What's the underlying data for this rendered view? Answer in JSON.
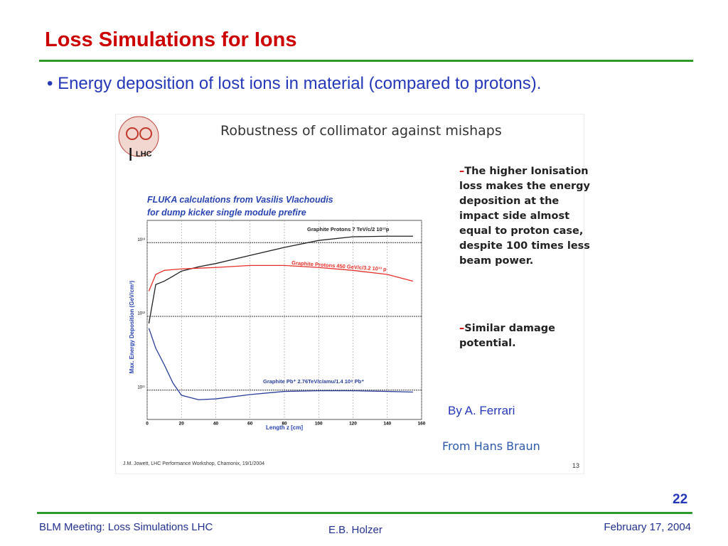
{
  "slide": {
    "title": "Loss Simulations for Ions",
    "bullet": "Energy deposition of lost ions in material (compared to protons).",
    "image_title": "Robustness of collimator against mishaps",
    "logo": "LHC",
    "notes": [
      "The higher Ionisation loss makes the energy deposition at the impact side almost equal to proton case, despite 100 times less beam power.",
      "Similar damage potential."
    ],
    "credit": "By A. Ferrari",
    "source": "From Hans Braun",
    "reference": "J.M. Jowett, LHC Performance Workshop, Chamonix, 19/1/2004",
    "image_page": "13",
    "page_number": "22",
    "footer": {
      "left": "BLM Meeting: Loss Simulations LHC",
      "center": "E.B. Holzer",
      "right": "February 17, 2004"
    }
  },
  "chart_data": {
    "type": "line",
    "title": [
      "FLUKA calculations from Vasilis Vlachoudis",
      "for dump kicker single module prefire"
    ],
    "x_label": "Length z [cm]",
    "y_label": "Max. Energy Deposition (GeV/cm³)",
    "log_y": true,
    "grid": true,
    "x": [
      1,
      5,
      10,
      15,
      20,
      30,
      40,
      60,
      80,
      100,
      120,
      140,
      155
    ],
    "series": [
      {
        "name": "Graphite Protons 7 TeV/c/2 10¹²p",
        "color": "#222222",
        "values": [
          800000000000.0,
          2700000000000.0,
          3000000000000.0,
          3500000000000.0,
          4100000000000.0,
          4700000000000.0,
          5200000000000.0,
          6700000000000.0,
          8600000000000.0,
          10700000000000.0,
          12000000000000.0,
          12200000000000.0,
          12200000000000.0
        ]
      },
      {
        "name": "Graphite Protons 450 GeV/c/3.2 10¹³ p",
        "color": "#e8302a",
        "values": [
          2200000000000.0,
          3700000000000.0,
          4200000000000.0,
          4300000000000.0,
          4400000000000.0,
          4500000000000.0,
          4600000000000.0,
          4900000000000.0,
          4900000000000.0,
          4600000000000.0,
          4200000000000.0,
          3700000000000.0,
          3000000000000.0
        ]
      },
      {
        "name": "Graphite Pb⁺ 2.76TeV/c/amu/1.4 10⁸ Pb⁺",
        "color": "#2a3f9a",
        "values": [
          690000000000.0,
          370000000000.0,
          220000000000.0,
          125000000000.0,
          85000000000.0,
          74000000000.0,
          76000000000.0,
          87000000000.0,
          96000000000.0,
          98000000000.0,
          98000000000.0,
          96000000000.0,
          94000000000.0
        ]
      }
    ],
    "xlim": [
      0,
      160
    ],
    "xticks": [
      0,
      20,
      40,
      60,
      80,
      100,
      120,
      140,
      160
    ],
    "ylim": [
      40000000000.0,
      20000000000000.0
    ],
    "yticks": [
      {
        "value": 100000000000.0,
        "label": "10¹¹"
      },
      {
        "value": 1000000000000.0,
        "label": "10¹²"
      },
      {
        "value": 10000000000000.0,
        "label": "10¹³"
      }
    ]
  }
}
